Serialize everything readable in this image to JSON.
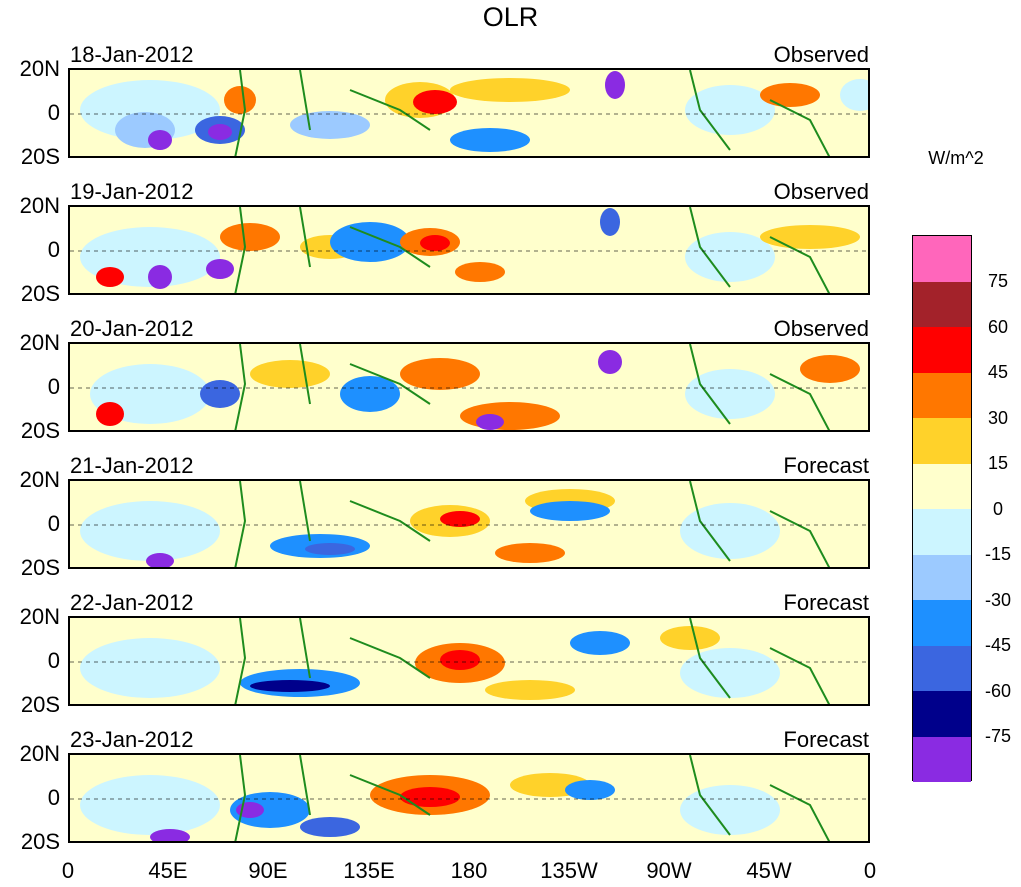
{
  "title": "OLR",
  "units": "W/m^2",
  "lat_labels": [
    "20N",
    "0",
    "20S"
  ],
  "lon_labels": [
    "0",
    "45E",
    "90E",
    "135E",
    "180",
    "135W",
    "90W",
    "45W",
    "0"
  ],
  "panels": [
    {
      "date": "18-Jan-2012",
      "kind": "Observed"
    },
    {
      "date": "19-Jan-2012",
      "kind": "Observed"
    },
    {
      "date": "20-Jan-2012",
      "kind": "Observed"
    },
    {
      "date": "21-Jan-2012",
      "kind": "Forecast"
    },
    {
      "date": "22-Jan-2012",
      "kind": "Forecast"
    },
    {
      "date": "23-Jan-2012",
      "kind": "Forecast"
    }
  ],
  "colorbar": {
    "levels": [
      "75",
      "60",
      "45",
      "30",
      "15",
      "0",
      "-15",
      "-30",
      "-45",
      "-60",
      "-75"
    ],
    "colors": [
      "#ff66bb",
      "#a3222a",
      "#ff0000",
      "#ff7700",
      "#ffd22a",
      "#ffffcc",
      "#ccf5ff",
      "#9ccaff",
      "#1e90ff",
      "#3b66e0",
      "#00008b",
      "#8a2be2"
    ]
  },
  "colors": {
    "land": "#1e8c1e",
    "zero_line": "#000000"
  }
}
